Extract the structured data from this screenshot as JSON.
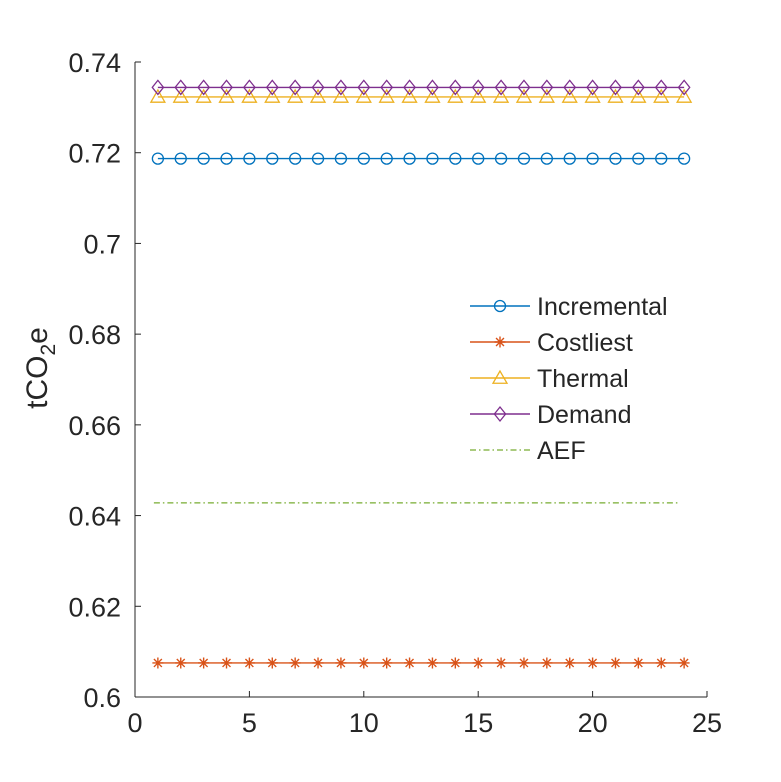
{
  "chart_data": {
    "type": "line",
    "title": "",
    "xlabel": "",
    "ylabel": "tCO2e",
    "ylabel_main": "tCO",
    "ylabel_sub": "2",
    "ylabel_tail": "e",
    "xlim": [
      0,
      25
    ],
    "ylim": [
      0.6,
      0.74
    ],
    "xticks": [
      "0",
      "5",
      "10",
      "15",
      "20",
      "25"
    ],
    "yticks": [
      "0.6",
      "0.62",
      "0.64",
      "0.66",
      "0.68",
      "0.7",
      "0.72",
      "0.74"
    ],
    "xtick_values": [
      0,
      5,
      10,
      15,
      20,
      25
    ],
    "ytick_values": [
      0.6,
      0.62,
      0.64,
      0.66,
      0.68,
      0.7,
      0.72,
      0.74
    ],
    "grid": false,
    "legend_position": "right-middle",
    "x": [
      1,
      2,
      3,
      4,
      5,
      6,
      7,
      8,
      9,
      10,
      11,
      12,
      13,
      14,
      15,
      16,
      17,
      18,
      19,
      20,
      21,
      22,
      23,
      24
    ],
    "series": [
      {
        "name": "Incremental",
        "color": "#0072BD",
        "marker": "circle",
        "line": "solid",
        "value": 0.7187
      },
      {
        "name": "Costliest",
        "color": "#D95319",
        "marker": "asterisk",
        "line": "solid",
        "value": 0.6075
      },
      {
        "name": "Thermal",
        "color": "#EDB120",
        "marker": "triangle",
        "line": "solid",
        "value": 0.7323
      },
      {
        "name": "Demand",
        "color": "#7E2F8E",
        "marker": "diamond",
        "line": "solid",
        "value": 0.7344
      },
      {
        "name": "AEF",
        "color": "#77AC30",
        "marker": "none",
        "line": "dash-dot",
        "value": 0.6428
      }
    ]
  }
}
